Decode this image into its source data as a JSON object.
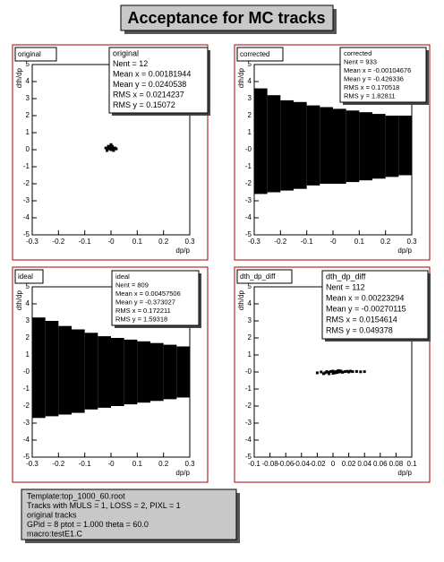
{
  "title": "Acceptance for MC tracks",
  "info": [
    "Template:top_1000_60.root",
    "Tracks with  MULS = 1, LOSS = 2, PIXL = 1",
    "original tracks",
    "GPid =  8   ptot =  1.000  theta =  60.0",
    "macro:testE1.C"
  ],
  "chart_data": [
    {
      "type": "scatter",
      "title": "original",
      "stats": [
        "original",
        "Nent = 12",
        "Mean x = 0.00181944",
        "Mean y = 0.0240538",
        "RMS x = 0.0214237",
        "RMS y = 0.15072"
      ],
      "xlabel": "dp/p",
      "ylabel": "dth/dp",
      "xlim": [
        -0.3,
        0.3
      ],
      "ylim": [
        -5,
        5
      ],
      "xticks": [
        -0.3,
        -0.2,
        -0.1,
        {
          "value": 0,
          "label": "-0"
        },
        0.1,
        0.2,
        0.3
      ],
      "yticks": [
        5,
        4,
        3,
        2,
        1,
        0,
        -1,
        -2,
        -3,
        -4,
        -5
      ],
      "x": [
        -0.02,
        -0.01,
        -0.01,
        0,
        0,
        0.01,
        0.01,
        0.02,
        0,
        -0.015,
        0.005,
        0.015
      ],
      "y": [
        0.1,
        0.05,
        0.2,
        0.15,
        0,
        0.1,
        -0.05,
        0.05,
        0.3,
        -0.05,
        0.2,
        0.1
      ]
    },
    {
      "type": "boxes",
      "title": "corrected",
      "stats": [
        "corrected",
        "Nent = 933",
        "Mean x = -0.00104676",
        "Mean y = -0.426336",
        "RMS x = 0.170518",
        "RMS y = 1.82811"
      ],
      "xlabel": "dp/p",
      "ylabel": "dth/dp",
      "xlim": [
        -0.3,
        0.3
      ],
      "ylim": [
        -5,
        5
      ],
      "xticks": [
        -0.3,
        -0.2,
        -0.1,
        {
          "value": 0,
          "label": "-0"
        },
        0.1,
        0.2,
        0.3
      ],
      "yticks": [
        5,
        4,
        3,
        2,
        1,
        {
          "value": 0,
          "label": "-0"
        },
        -1,
        -2,
        -3,
        -4,
        -5
      ],
      "cells": [
        [
          -0.3,
          -0.25,
          -2.6,
          3.6
        ],
        [
          -0.25,
          -0.2,
          -2.5,
          3.2
        ],
        [
          -0.2,
          -0.15,
          -2.4,
          2.9
        ],
        [
          -0.15,
          -0.1,
          -2.3,
          2.8
        ],
        [
          -0.1,
          -0.05,
          -2.1,
          2.6
        ],
        [
          -0.05,
          0,
          -2,
          2.5
        ],
        [
          0,
          0.05,
          -2,
          2.4
        ],
        [
          0.05,
          0.1,
          -1.9,
          2.3
        ],
        [
          0.1,
          0.15,
          -1.8,
          2.2
        ],
        [
          0.15,
          0.2,
          -1.7,
          2.1
        ],
        [
          0.2,
          0.25,
          -1.6,
          2.0
        ],
        [
          0.25,
          0.3,
          -1.5,
          2.0
        ]
      ]
    },
    {
      "type": "boxes",
      "title": "ideal",
      "stats": [
        "ideal",
        "Nent = 809",
        "Mean x = 0.00457506",
        "Mean y = -0.373027",
        "RMS x = 0.172211",
        "RMS y = 1.59318"
      ],
      "xlabel": "dp/p",
      "ylabel": "dth/dp",
      "xlim": [
        -0.3,
        0.3
      ],
      "ylim": [
        -5,
        5
      ],
      "xticks": [
        -0.3,
        -0.2,
        -0.1,
        {
          "value": 0,
          "label": "-0"
        },
        0.1,
        0.2,
        0.3
      ],
      "yticks": [
        5,
        4,
        3,
        2,
        1,
        {
          "value": 0,
          "label": "-0"
        },
        -1,
        -2,
        -3,
        -4,
        -5
      ],
      "cells": [
        [
          -0.3,
          -0.25,
          -2.7,
          3.2
        ],
        [
          -0.25,
          -0.2,
          -2.6,
          3.0
        ],
        [
          -0.2,
          -0.15,
          -2.5,
          2.7
        ],
        [
          -0.15,
          -0.1,
          -2.4,
          2.5
        ],
        [
          -0.1,
          -0.05,
          -2.2,
          2.3
        ],
        [
          -0.05,
          0,
          -2.1,
          2.1
        ],
        [
          0,
          0.05,
          -2,
          2.0
        ],
        [
          0.05,
          0.1,
          -1.9,
          1.9
        ],
        [
          0.1,
          0.15,
          -1.8,
          1.8
        ],
        [
          0.15,
          0.2,
          -1.7,
          1.7
        ],
        [
          0.2,
          0.25,
          -1.6,
          1.6
        ],
        [
          0.25,
          0.3,
          -1.5,
          1.5
        ]
      ]
    },
    {
      "type": "scatter",
      "title": "dth_dp_diff",
      "stats": [
        "dth_dp_diff",
        "Nent = 112",
        "Mean x = 0.00223294",
        "Mean y = -0.00270115",
        "RMS x = 0.0154614",
        "RMS y = 0.049378"
      ],
      "xlabel": "dp/p",
      "ylabel": "dth/dp",
      "xlim": [
        -0.1,
        0.1
      ],
      "ylim": [
        -5,
        5
      ],
      "xticks": [
        -0.1,
        -0.08,
        -0.06,
        -0.04,
        -0.02,
        0,
        0.02,
        0.04,
        0.06,
        0.08,
        0.1
      ],
      "yticks": [
        5,
        4,
        3,
        2,
        1,
        {
          "value": 0,
          "label": "-0"
        },
        -1,
        -2,
        -3,
        -4,
        -5
      ],
      "x": [
        -0.02,
        -0.015,
        -0.01,
        -0.008,
        -0.005,
        -0.003,
        0,
        0.002,
        0.004,
        0.005,
        0.006,
        0.008,
        0.01,
        0.012,
        0.015,
        0.018,
        0.02,
        0.022,
        0.025,
        0.03,
        0.035,
        0.04,
        -0.012,
        0.0,
        0.003,
        0.007,
        0.01,
        -0.006
      ],
      "y": [
        -0.05,
        0.0,
        -0.05,
        0.02,
        -0.1,
        0.03,
        0.05,
        0.0,
        0.02,
        -0.03,
        0.05,
        0.0,
        0.03,
        -0.02,
        0.02,
        0.04,
        0.0,
        0.05,
        0.02,
        0.03,
        0.01,
        0.02,
        -0.1,
        -0.08,
        -0.05,
        0.08,
        0.06,
        -0.02
      ]
    }
  ]
}
